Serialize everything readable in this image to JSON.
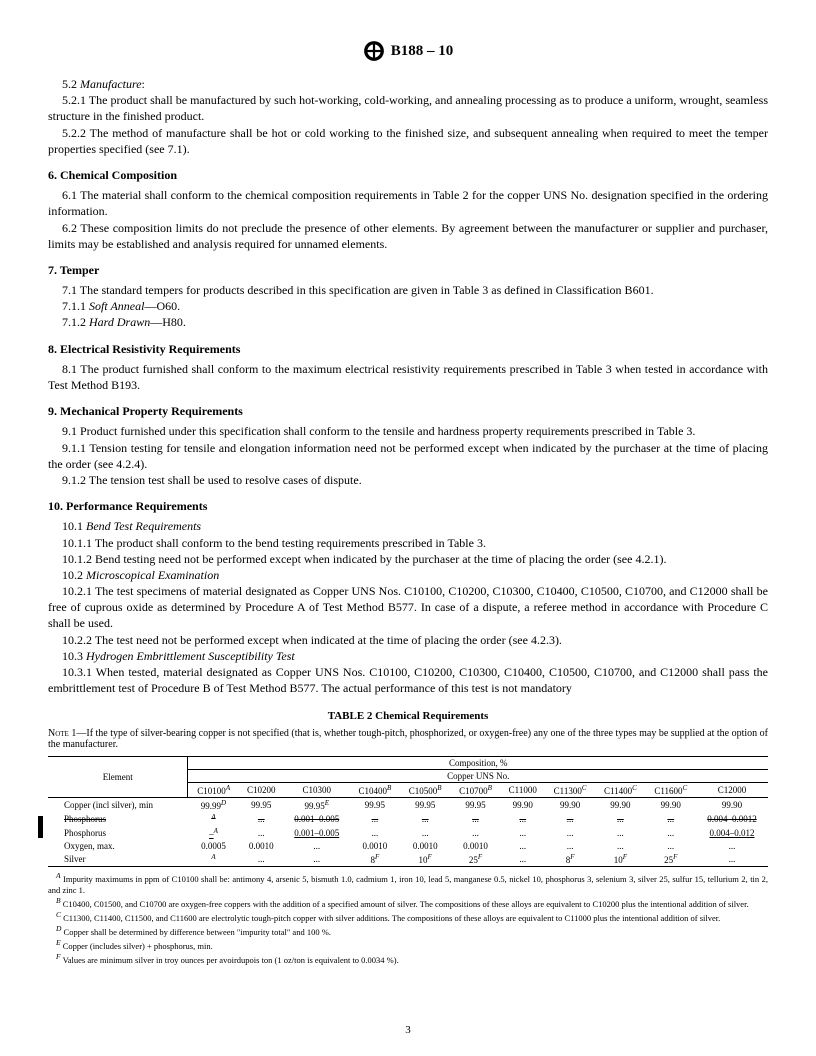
{
  "header": {
    "doc_title": "B188 – 10"
  },
  "sections": {
    "s5_2": "5.2 ",
    "s5_2_t": "Manufacture",
    "s5_2_1": "5.2.1 The product shall be manufactured by such hot-working, cold-working, and annealing processing as to produce a uniform, wrought, seamless structure in the finished product.",
    "s5_2_2": "5.2.2 The method of manufacture shall be hot or cold working to the finished size, and subsequent annealing when required to meet the temper properties specified (see 7.1).",
    "s6": "6.  Chemical Composition",
    "s6_1": "6.1 The material shall conform to the chemical composition requirements in Table 2 for the copper UNS No. designation specified in the ordering information.",
    "s6_2": "6.2 These composition limits do not preclude the presence of other elements. By agreement between the manufacturer or supplier and purchaser, limits may be established and analysis required for unnamed elements.",
    "s7": "7.  Temper",
    "s7_1": "7.1 The standard tempers for products described in this specification are given in Table 3 as defined in Classification B601.",
    "s7_1_1a": "7.1.1 ",
    "s7_1_1b": "Soft Anneal",
    "s7_1_1c": "—O60.",
    "s7_1_2a": "7.1.2 ",
    "s7_1_2b": "Hard Drawn",
    "s7_1_2c": "—H80.",
    "s8": "8.  Electrical Resistivity Requirements",
    "s8_1": "8.1 The product furnished shall conform to the maximum electrical resistivity requirements prescribed in Table 3 when tested in accordance with Test Method B193.",
    "s9": "9.  Mechanical Property Requirements",
    "s9_1": "9.1 Product furnished under this specification shall conform to the tensile and hardness property requirements prescribed in Table 3.",
    "s9_1_1": "9.1.1 Tension testing for tensile and elongation information need not be performed except when indicated by the purchaser at the time of placing the order (see 4.2.4).",
    "s9_1_2": "9.1.2 The tension test shall be used to resolve cases of dispute.",
    "s10": "10.  Performance Requirements",
    "s10_1a": "10.1 ",
    "s10_1b": "Bend Test Requirements",
    "s10_1_1": "10.1.1 The product shall conform to the bend testing requirements prescribed in Table 3.",
    "s10_1_2": "10.1.2 Bend testing need not be performed except when indicated by the purchaser at the time of placing the order (see 4.2.1).",
    "s10_2a": "10.2 ",
    "s10_2b": "Microscopical Examination",
    "s10_2_1": "10.2.1 The test specimens of material designated as Copper UNS Nos. C10100, C10200, C10300, C10400, C10500, C10700, and C12000 shall be free of cuprous oxide as determined by Procedure A of Test Method B577. In case of a dispute, a referee method in accordance with Procedure C shall be used.",
    "s10_2_2": "10.2.2 The test need not be performed except when indicated at the time of placing the order (see 4.2.3).",
    "s10_3a": "10.3 ",
    "s10_3b": "Hydrogen Embrittlement Susceptibility Test",
    "s10_3_1": "10.3.1 When tested, material designated as Copper UNS Nos. C10100, C10200, C10300, C10400, C10500, C10700, and C12000 shall pass the embrittlement test of Procedure B of Test Method B577. The actual performance of this test is not mandatory"
  },
  "table": {
    "title": "TABLE 2  Chemical Requirements",
    "note_label": "Note",
    "note_num": " 1—",
    "note_text": "If the type of silver-bearing copper is not specified (that is, whether tough-pitch, phosphorized, or oxygen-free) any one of the three types may be supplied at the option of the manufacturer.",
    "comp_header": "Composition, %",
    "uns_header": "Copper UNS No.",
    "element_label": "Element",
    "cols": [
      "C10100",
      "C10200",
      "C10300",
      "C10400",
      "C10500",
      "C10700",
      "C11000",
      "C11300",
      "C11400",
      "C11600",
      "C12000"
    ],
    "col_sups": [
      "A",
      "",
      "",
      "B",
      "B",
      "B",
      "",
      "C",
      "C",
      "C",
      ""
    ],
    "rows": {
      "copper": {
        "label": "Copper (incl silver), min",
        "vals": [
          "99.99",
          "99.95",
          "99.95",
          "99.95",
          "99.95",
          "99.95",
          "99.90",
          "99.90",
          "99.90",
          "99.90",
          "99.90"
        ],
        "sups": [
          "D",
          "",
          "E",
          "",
          "",
          "",
          "",
          "",
          "",
          "",
          ""
        ]
      },
      "phos_strike": {
        "label": "Phosphorus",
        "vals": [
          "",
          "...",
          "0.001–0.005",
          "...",
          "...",
          "...",
          "...",
          "...",
          "...",
          "...",
          "0.004–0.0012"
        ],
        "sups": [
          "A",
          "",
          "",
          "",
          "",
          "",
          "",
          "",
          "",
          "",
          ""
        ]
      },
      "phos_new": {
        "label": "Phosphorus",
        "vals": [
          "–",
          "...",
          "0.001–0.005",
          "...",
          "...",
          "...",
          "...",
          "...",
          "...",
          "...",
          "0.004–0.012"
        ],
        "sups": [
          "A",
          "",
          "",
          "",
          "",
          "",
          "",
          "",
          "",
          "",
          ""
        ]
      },
      "oxygen": {
        "label": "Oxygen, max.",
        "vals": [
          "0.0005",
          "0.0010",
          "...",
          "0.0010",
          "0.0010",
          "0.0010",
          "...",
          "...",
          "...",
          "...",
          "..."
        ],
        "sups": [
          "",
          "",
          "",
          "",
          "",
          "",
          "",
          "",
          "",
          "",
          ""
        ]
      },
      "silver": {
        "label": "Silver",
        "vals": [
          "",
          "...",
          "...",
          "8",
          "10",
          "25",
          "...",
          "8",
          "10",
          "25",
          "..."
        ],
        "sups": [
          "A",
          "",
          "",
          "F",
          "F",
          "F",
          "",
          "F",
          "F",
          "F",
          ""
        ]
      }
    }
  },
  "footnotes": {
    "A": " Impurity maximums in ppm of C10100 shall be: antimony 4, arsenic 5, bismuth 1.0, cadmium 1, iron 10, lead 5, manganese 0.5, nickel 10, phosphorus 3, selenium 3, silver 25, sulfur 15, tellurium 2, tin 2, and zinc 1.",
    "B": " C10400, C01500, and C10700 are oxygen-free coppers with the addition of a specified amount of silver. The compositions of these alloys are equivalent to C10200 plus the intentional addition of silver.",
    "C": " C11300, C11400, C11500, and C11600 are electrolytic tough-pitch copper with silver additions. The compositions of these alloys are equivalent to C11000 plus the intentional addition of silver.",
    "D": " Copper shall be determined by difference between \"impurity total\" and 100 %.",
    "E": " Copper (includes silver) + phosphorus, min.",
    "F": " Values are minimum silver in troy ounces per avoirdupois ton (1 oz/ton is equivalent to 0.0034 %)."
  },
  "page_num": "3"
}
